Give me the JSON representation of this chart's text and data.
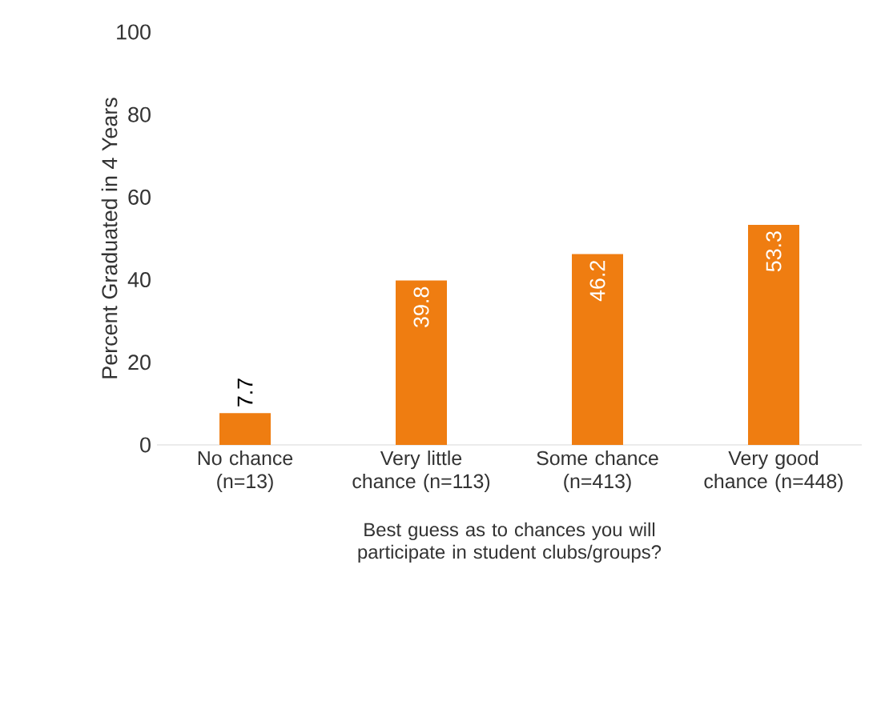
{
  "chart_data": {
    "type": "bar",
    "categories": [
      "No chance (n=13)",
      "Very little chance (n=113)",
      "Some chance (n=413)",
      "Very good chance (n=448)"
    ],
    "values": [
      7.7,
      39.8,
      46.2,
      53.3
    ],
    "color": "#ef7d11",
    "xlabel": "Best guess as to chances you will participate in student clubs/groups?",
    "ylabel": "Percent Graduated in 4 Years",
    "ylim": [
      0,
      100
    ],
    "yticks": [
      0,
      20,
      40,
      60,
      80,
      100
    ],
    "data_labels": true
  }
}
